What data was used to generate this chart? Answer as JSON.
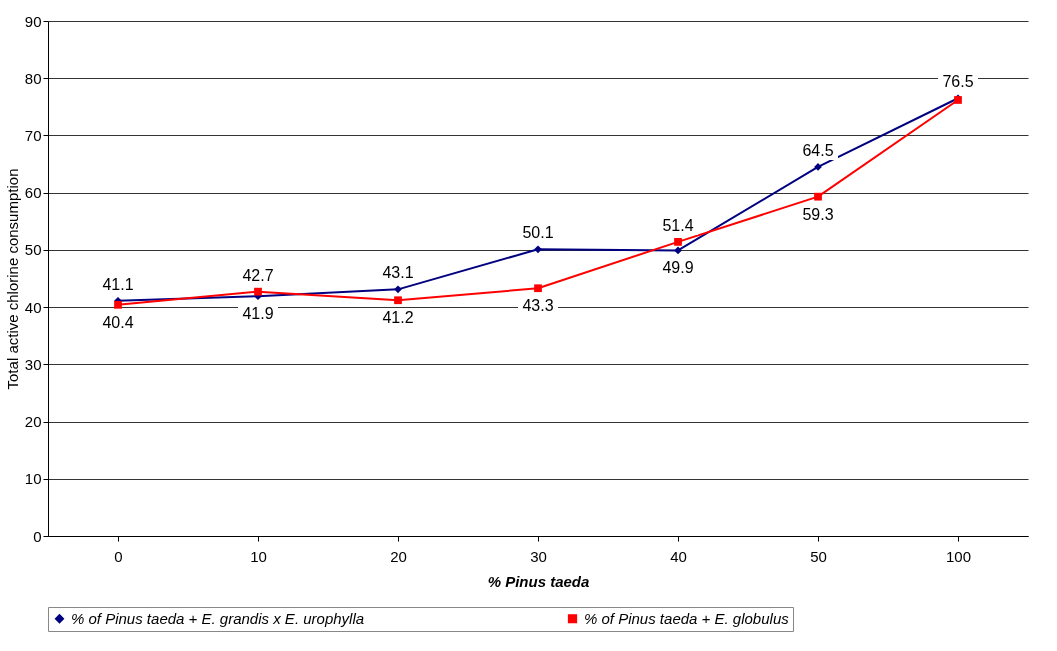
{
  "chart_data": {
    "type": "line",
    "xlabel": "% Pinus taeda",
    "ylabel": "Total active chlorine consumption",
    "categories": [
      "0",
      "10",
      "20",
      "30",
      "40",
      "50",
      "100"
    ],
    "series": [
      {
        "name": "% of Pinus taeda + E. grandis x E. urophylla",
        "color": "#000080",
        "marker": "diamond",
        "values": [
          41.1,
          41.9,
          43.1,
          50.1,
          49.9,
          64.5,
          76.5
        ],
        "value_labels": [
          "41.1",
          "41.9",
          "43.1",
          "50.1",
          "49.9",
          "64.5",
          "76.5"
        ]
      },
      {
        "name": "% of Pinus taeda + E. globulus",
        "color": "#ff0000",
        "marker": "square",
        "values": [
          40.4,
          42.7,
          41.2,
          43.3,
          51.4,
          59.3,
          76.2
        ],
        "value_labels": [
          "40.4",
          "42.7",
          "41.2",
          "43.3",
          "51.4",
          "59.3",
          null
        ]
      }
    ],
    "ylim": [
      0,
      90
    ],
    "yticks": [
      0,
      10,
      20,
      30,
      40,
      50,
      60,
      70,
      80,
      90
    ],
    "grid": "y",
    "legend": "bottom"
  }
}
